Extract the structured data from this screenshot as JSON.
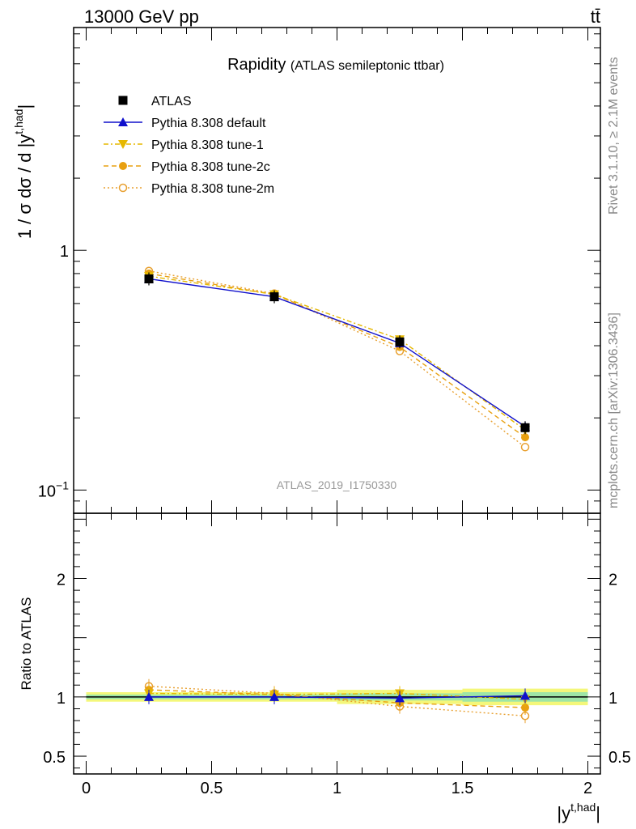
{
  "header": {
    "energy_label": "13000 GeV pp",
    "process_label": "tt̄"
  },
  "side_labels": {
    "rivet": "Rivet 3.1.10, ≥ 2.1M events",
    "source": "mcplots.cern.ch [arXiv:1306.3436]"
  },
  "chart_data": [
    {
      "type": "line",
      "title": "Rapidity",
      "subtitle": "(ATLAS semileptonic ttbar)",
      "watermark": "ATLAS_2019_I1750330",
      "ylabel": "1 / σ dσ / d |y",
      "ylabel_sup": "t,had",
      "ylabel_end": "|",
      "yscale": "log",
      "ylim": [
        0.08,
        8.5
      ],
      "xlim": [
        -0.05,
        2.05
      ],
      "ytick_labels": [
        {
          "value": 1,
          "label": "1"
        },
        {
          "value": 0.1,
          "label": "10",
          "sup": "−1"
        }
      ],
      "x": [
        0.25,
        0.75,
        1.25,
        1.75
      ],
      "x_bin_edges": [
        0,
        0.5,
        1.0,
        1.5,
        2.0
      ],
      "legend_position": "top-left",
      "series": [
        {
          "name": "ATLAS",
          "values": [
            0.76,
            0.64,
            0.415,
            0.182
          ],
          "color": "#000000",
          "marker": "square"
        },
        {
          "name": "Pythia 8.308 default",
          "values": [
            0.76,
            0.64,
            0.41,
            0.184
          ],
          "color": "#1010cc",
          "marker": "triangle-up",
          "line": "solid"
        },
        {
          "name": "Pythia 8.308 tune-1",
          "values": [
            0.78,
            0.655,
            0.425,
            0.178
          ],
          "color": "#e6b800",
          "marker": "triangle-down",
          "line": "dashdot"
        },
        {
          "name": "Pythia 8.308 tune-2c",
          "values": [
            0.8,
            0.655,
            0.395,
            0.166
          ],
          "color": "#e8a010",
          "marker": "circle",
          "line": "dashed"
        },
        {
          "name": "Pythia 8.308 tune-2m",
          "values": [
            0.82,
            0.66,
            0.38,
            0.151
          ],
          "color": "#e8a030",
          "marker": "circle-open",
          "line": "dotted"
        }
      ]
    },
    {
      "type": "line",
      "ylabel": "Ratio to ATLAS",
      "xlabel": "|y",
      "xlabel_sup": "t,had",
      "xlabel_end": "|",
      "ylim": [
        0.35,
        2.55
      ],
      "xlim": [
        -0.05,
        2.05
      ],
      "ytick_labels": [
        "2",
        "1",
        "0.5"
      ],
      "xtick_labels": [
        "0",
        "0.5",
        "1",
        "1.5",
        "2"
      ],
      "x": [
        0.25,
        0.75,
        1.25,
        1.75
      ],
      "band_stat": [
        0.02,
        0.02,
        0.03,
        0.04
      ],
      "band_total": [
        0.04,
        0.04,
        0.06,
        0.07
      ],
      "series": [
        {
          "name": "Pythia 8.308 default",
          "values": [
            1.0,
            1.0,
            0.99,
            1.01
          ]
        },
        {
          "name": "Pythia 8.308 tune-1",
          "values": [
            1.03,
            1.02,
            1.03,
            0.98
          ]
        },
        {
          "name": "Pythia 8.308 tune-2c",
          "values": [
            1.06,
            1.02,
            0.95,
            0.91
          ]
        },
        {
          "name": "Pythia 8.308 tune-2m",
          "values": [
            1.09,
            1.03,
            0.92,
            0.84
          ]
        }
      ]
    }
  ]
}
